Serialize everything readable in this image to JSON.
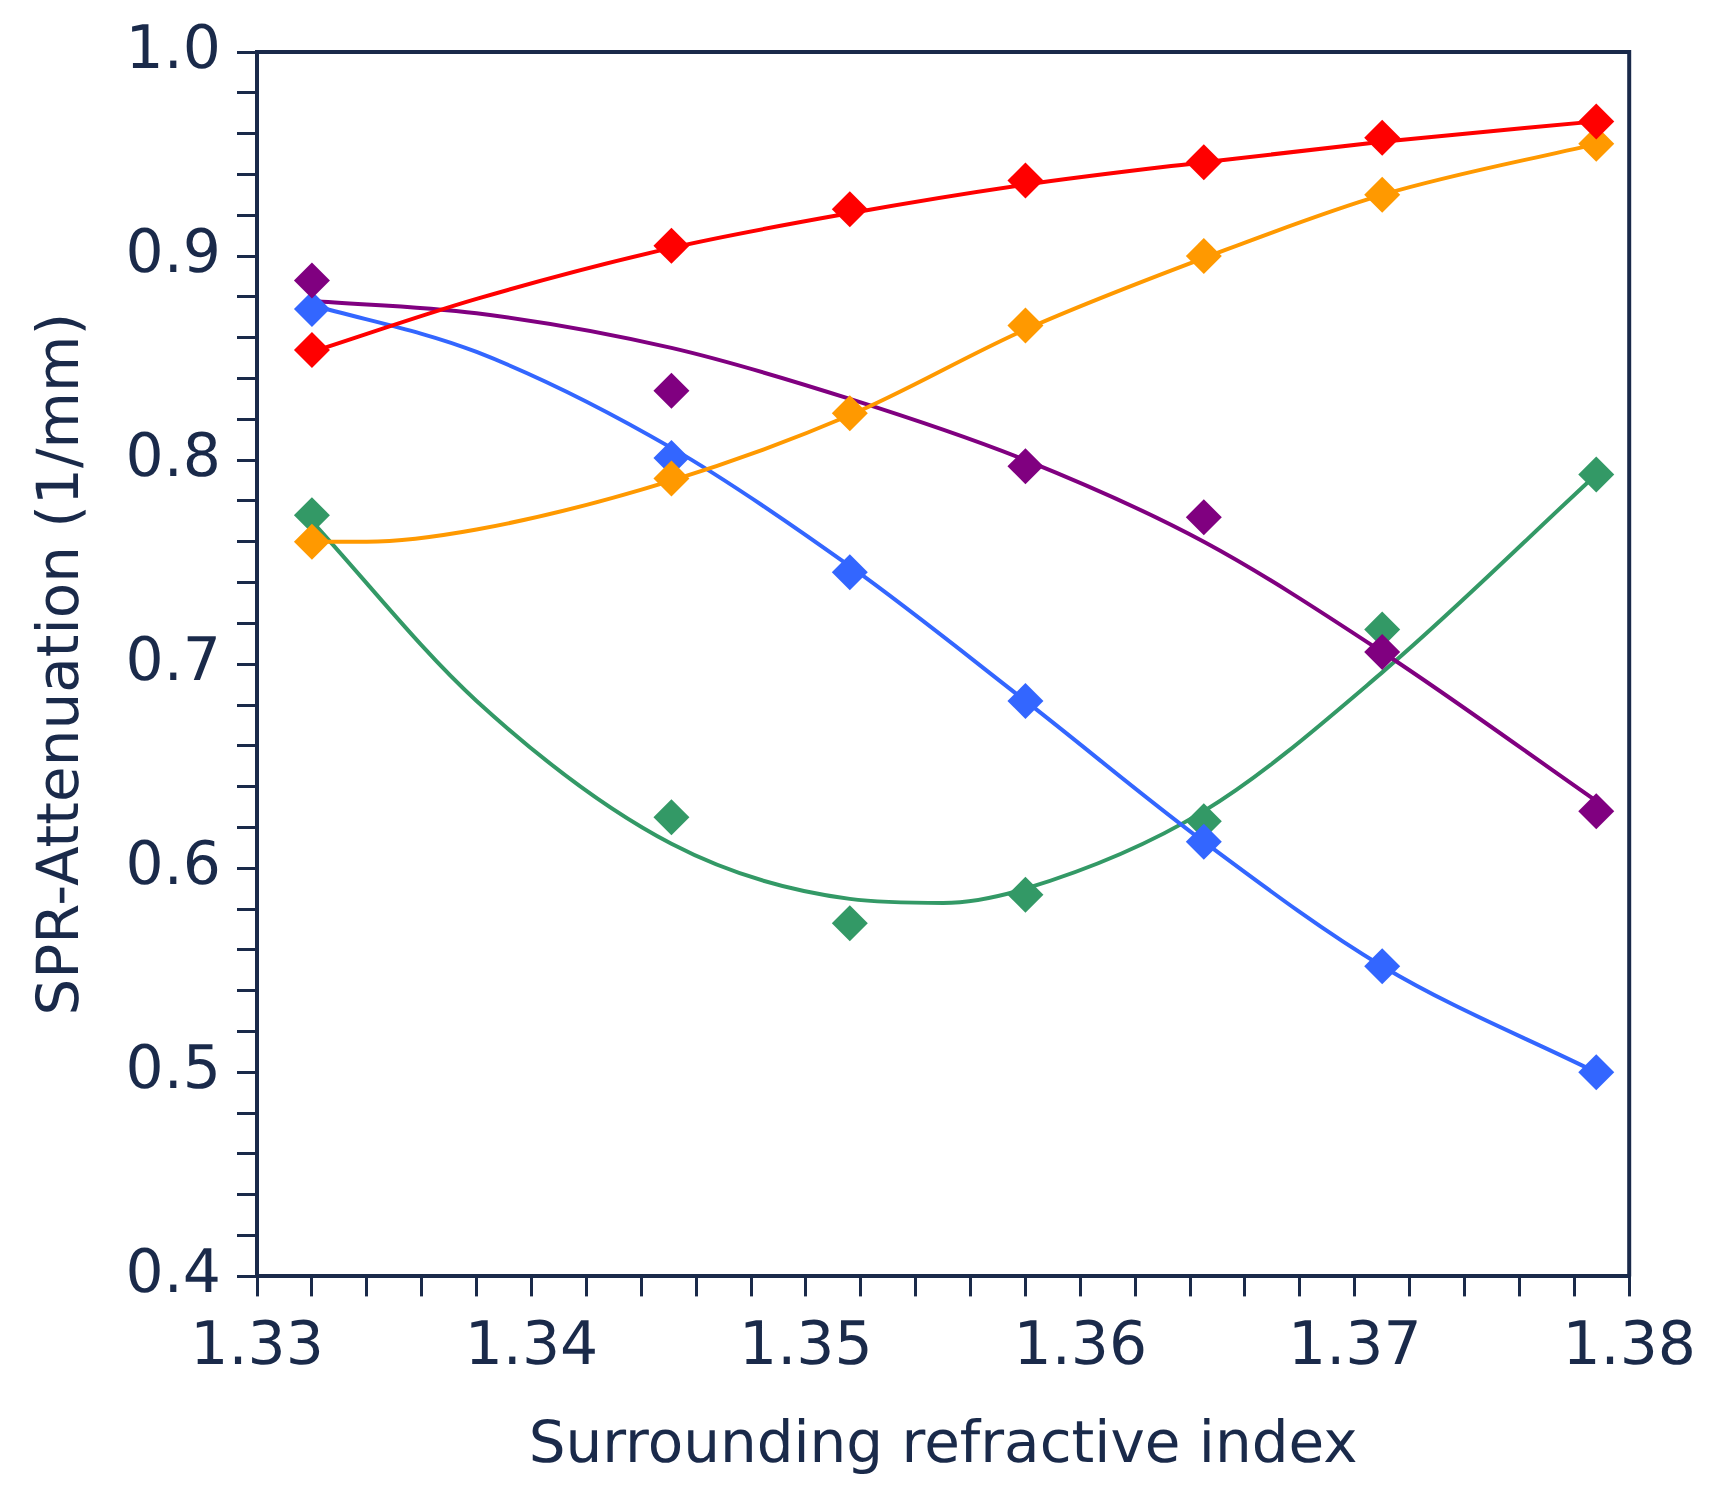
{
  "chart_data": {
    "type": "scatter",
    "xlabel": "Surrounding refractive index",
    "ylabel": "SPR-Attenuation (1/mm)",
    "xlim": [
      1.33,
      1.38
    ],
    "xticks": [
      1.33,
      {
        "value": 1.332,
        "label": null
      },
      {
        "value": 1.334,
        "label": null
      },
      {
        "value": 1.336,
        "label": null
      },
      {
        "value": 1.338,
        "label": null
      },
      1.34,
      {
        "value": 1.342,
        "label": null
      },
      {
        "value": 1.344,
        "label": null
      },
      {
        "value": 1.346,
        "label": null
      },
      {
        "value": 1.348,
        "label": null
      },
      1.35,
      {
        "value": 1.352,
        "label": null
      },
      {
        "value": 1.354,
        "label": null
      },
      {
        "value": 1.356,
        "label": null
      },
      {
        "value": 1.358,
        "label": null
      },
      1.36,
      {
        "value": 1.362,
        "label": null
      },
      {
        "value": 1.364,
        "label": null
      },
      {
        "value": 1.366,
        "label": null
      },
      {
        "value": 1.368,
        "label": null
      },
      1.37,
      {
        "value": 1.372,
        "label": null
      },
      {
        "value": 1.374,
        "label": null
      },
      {
        "value": 1.376,
        "label": null
      },
      {
        "value": 1.378,
        "label": null
      },
      1.38
    ],
    "ylim": [
      0.4,
      1.0
    ],
    "yticks": [
      0.4,
      {
        "value": 0.42,
        "label": null
      },
      {
        "value": 0.44,
        "label": null
      },
      {
        "value": 0.46,
        "label": null
      },
      {
        "value": 0.48,
        "label": null
      },
      0.5,
      {
        "value": 0.52,
        "label": null
      },
      {
        "value": 0.54,
        "label": null
      },
      {
        "value": 0.56,
        "label": null
      },
      {
        "value": 0.58,
        "label": null
      },
      0.6,
      {
        "value": 0.62,
        "label": null
      },
      {
        "value": 0.64,
        "label": null
      },
      {
        "value": 0.66,
        "label": null
      },
      {
        "value": 0.68,
        "label": null
      },
      0.7,
      {
        "value": 0.72,
        "label": null
      },
      {
        "value": 0.74,
        "label": null
      },
      {
        "value": 0.76,
        "label": null
      },
      {
        "value": 0.78,
        "label": null
      },
      0.8,
      {
        "value": 0.82,
        "label": null
      },
      {
        "value": 0.84,
        "label": null
      },
      {
        "value": 0.86,
        "label": null
      },
      {
        "value": 0.88,
        "label": null
      },
      0.9,
      {
        "value": 0.92,
        "label": null
      },
      {
        "value": 0.94,
        "label": null
      },
      {
        "value": 0.96,
        "label": null
      },
      {
        "value": 0.98,
        "label": null
      },
      {
        "value": 1.0,
        "label": "1.0"
      }
    ],
    "grid": false,
    "legend": false,
    "marker": "diamond",
    "series": [
      {
        "type": "line",
        "marker": "none",
        "color": "#ff0000",
        "x": [
          1.332,
          1.338,
          1.3451,
          1.3516,
          1.358,
          1.3645,
          1.371,
          1.3788
        ],
        "values": [
          0.853,
          0.879,
          0.904,
          0.921,
          0.935,
          0.946,
          0.956,
          0.966
        ]
      },
      {
        "type": "line",
        "marker": "none",
        "color": "#ff9900",
        "x": [
          1.332,
          1.334,
          1.338,
          1.3451,
          1.3516,
          1.358,
          1.3645,
          1.371,
          1.3788
        ],
        "values": [
          0.76,
          0.76,
          0.766,
          0.79,
          0.822,
          0.864,
          0.899,
          0.93,
          0.955
        ]
      },
      {
        "type": "line",
        "marker": "none",
        "color": "#800080",
        "x": [
          1.332,
          1.338,
          1.3451,
          1.3516,
          1.358,
          1.3645,
          1.371,
          1.3788
        ],
        "values": [
          0.878,
          0.872,
          0.855,
          0.83,
          0.8,
          0.76,
          0.706,
          0.633
        ]
      },
      {
        "type": "line",
        "marker": "none",
        "color": "#3366ff",
        "x": [
          1.332,
          1.338,
          1.3451,
          1.3516,
          1.358,
          1.3645,
          1.371,
          1.3788
        ],
        "values": [
          0.876,
          0.853,
          0.806,
          0.748,
          0.682,
          0.613,
          0.552,
          0.5
        ]
      },
      {
        "type": "line",
        "marker": "none",
        "color": "#339966",
        "x": [
          1.332,
          1.338,
          1.3451,
          1.3516,
          1.355,
          1.358,
          1.3645,
          1.371,
          1.3788
        ],
        "values": [
          0.77,
          0.682,
          0.612,
          0.585,
          0.583,
          0.59,
          0.628,
          0.696,
          0.793
        ]
      },
      {
        "type": "scatter",
        "color": "#ff0000",
        "x": [
          1.332,
          1.3451,
          1.3516,
          1.358,
          1.3645,
          1.371,
          1.3788
        ],
        "values": [
          0.854,
          0.905,
          0.923,
          0.937,
          0.946,
          0.958,
          0.966
        ]
      },
      {
        "type": "scatter",
        "color": "#ff9900",
        "x": [
          1.332,
          1.3451,
          1.3516,
          1.358,
          1.3645,
          1.371,
          1.3788
        ],
        "values": [
          0.76,
          0.791,
          0.823,
          0.866,
          0.9,
          0.93,
          0.955
        ]
      },
      {
        "type": "scatter",
        "color": "#800080",
        "x": [
          1.332,
          1.3451,
          1.3516,
          1.358,
          1.3645,
          1.371,
          1.3788
        ],
        "values": [
          0.888,
          0.834,
          null,
          0.797,
          0.772,
          0.706,
          0.628
        ]
      },
      {
        "type": "scatter",
        "color": "#3366ff",
        "x": [
          1.332,
          1.3451,
          1.3516,
          1.358,
          1.3645,
          1.371,
          1.3788
        ],
        "values": [
          0.874,
          0.801,
          0.745,
          0.682,
          0.613,
          0.552,
          0.5
        ]
      },
      {
        "type": "scatter",
        "color": "#339966",
        "x": [
          1.332,
          1.3451,
          1.3516,
          1.358,
          1.3645,
          1.371,
          1.3788
        ],
        "values": [
          0.773,
          0.625,
          0.573,
          0.587,
          0.623,
          0.717,
          0.793
        ]
      }
    ]
  }
}
